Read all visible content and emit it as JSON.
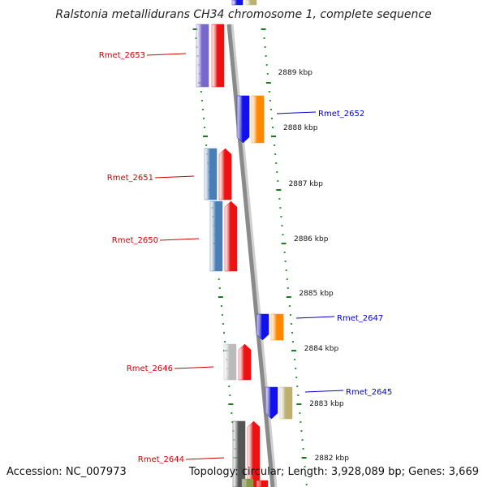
{
  "title": "Ralstonia metallidurans CH34 chromosome 1, complete sequence",
  "accession": "Accession: NC_007973",
  "summary": "Topology: circular; Length: 3,928,089 bp; Genes: 3,669",
  "colors": {
    "backbone": "#8a8a8a",
    "tick_major": "#1a7a1a",
    "tick_minor": "#2a9a2a",
    "label_left": "#cc0000",
    "label_right": "#0000cc"
  },
  "scale_labels": [
    "2889 kbp",
    "2888 kbp",
    "2887 kbp",
    "2886 kbp",
    "2885 kbp",
    "2884 kbp",
    "2883 kbp",
    "2882 kbp"
  ],
  "genes": [
    {
      "name": "Rmet_2653",
      "side": "left",
      "colors": [
        "#7766cc",
        "#ee1111"
      ]
    },
    {
      "name": "Rmet_2652",
      "side": "right",
      "colors": [
        "#1111ee",
        "#ff8800"
      ]
    },
    {
      "name": "Rmet_2651",
      "side": "left",
      "colors": [
        "#4a7fb5",
        "#ee1111"
      ]
    },
    {
      "name": "Rmet_2650",
      "side": "left",
      "colors": [
        "#4a7fb5",
        "#ee1111"
      ]
    },
    {
      "name": "Rmet_2647",
      "side": "right",
      "colors": [
        "#1111ee",
        "#ff8800"
      ]
    },
    {
      "name": "Rmet_2646",
      "side": "left",
      "colors": [
        "#bbbbbb",
        "#ee1111"
      ]
    },
    {
      "name": "Rmet_2645",
      "side": "right",
      "colors": [
        "#1111ee",
        "#bbb070"
      ]
    },
    {
      "name": "Rmet_2644",
      "side": "left",
      "colors": [
        "#555555",
        "#ee1111"
      ]
    }
  ]
}
